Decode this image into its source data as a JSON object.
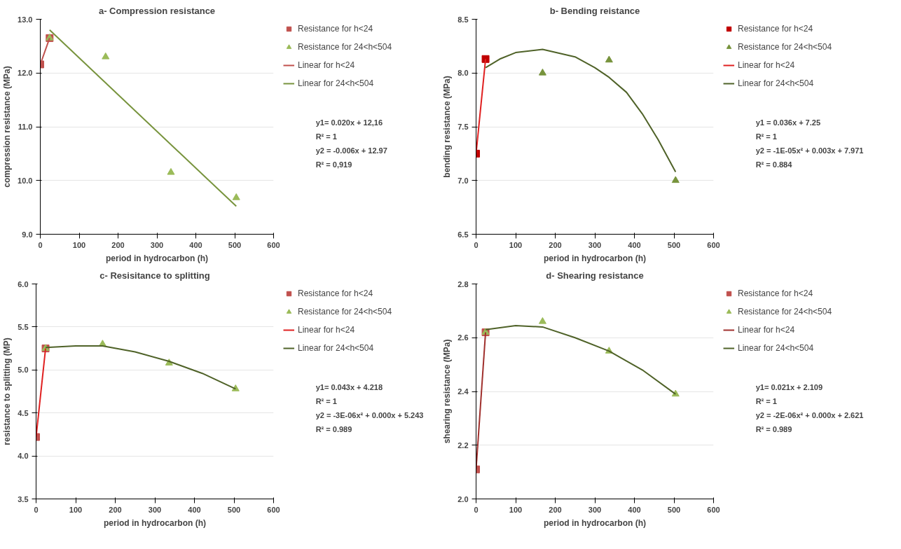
{
  "chart_data": [
    {
      "type": "scatter",
      "title": "a- Compression resistance",
      "xlabel": "period in hydrocarbon (h)",
      "ylabel": "compression resistance (MPa)",
      "xlim": [
        0,
        600
      ],
      "xticks": [
        0,
        100,
        200,
        300,
        400,
        500,
        600
      ],
      "ylim": [
        9,
        13
      ],
      "yticks": [
        {
          "value": 9,
          "label": "9.0"
        },
        {
          "value": 10,
          "label": "10.0"
        },
        {
          "value": 11,
          "label": "11.0"
        },
        {
          "value": 12,
          "label": "12.0"
        },
        {
          "value": 13,
          "label": "13.0"
        }
      ],
      "grid": "y",
      "legend": "right",
      "annotations": [
        "y1= 0.020x + 12,16",
        "R² = 1",
        "y2 = -0.006x + 12.97",
        "R² = 0,919"
      ],
      "series": [
        {
          "name": "Resistance for h<24",
          "marker": "square",
          "color": "#c0504d",
          "x": [
            0,
            24
          ],
          "values": [
            12.16,
            12.65
          ]
        },
        {
          "name": "Resistance for 24<h<504",
          "marker": "triangle",
          "color": "#9bbb59",
          "x": [
            24,
            168,
            336,
            504
          ],
          "values": [
            12.65,
            12.3,
            10.15,
            9.68
          ]
        },
        {
          "name": "Linear for h<24",
          "type": "line",
          "marker": "none",
          "color": "#c0504d",
          "x": [
            0,
            24
          ],
          "values": [
            12.16,
            12.65
          ]
        },
        {
          "name": "Linear for 24<h<504",
          "type": "line",
          "marker": "none",
          "color": "#77933c",
          "x": [
            24,
            504
          ],
          "values": [
            12.8,
            9.52
          ]
        }
      ]
    },
    {
      "type": "scatter",
      "title": "b- Bending reistance",
      "xlabel": "period in hydrocarbon (h)",
      "ylabel": "bending resistance (MPa)",
      "xlim": [
        0,
        600
      ],
      "xticks": [
        0,
        100,
        200,
        300,
        400,
        500,
        600
      ],
      "ylim": [
        6.5,
        8.5
      ],
      "yticks": [
        6.5,
        {
          "value": 7,
          "label": "7.0"
        },
        7.5,
        {
          "value": 8,
          "label": "8.0"
        },
        8.5
      ],
      "grid": "y",
      "legend": "right",
      "annotations": [
        "y1 = 0.036x + 7.25",
        "R² = 1",
        "y2 = -1E-05x² + 0.003x + 7.971",
        "R² = 0.884"
      ],
      "series": [
        {
          "name": "Resistance for h<24",
          "marker": "square",
          "color": "#c00000",
          "x": [
            0,
            24
          ],
          "values": [
            7.25,
            8.13
          ]
        },
        {
          "name": "Resistance for 24<h<504",
          "marker": "triangle",
          "color": "#77933c",
          "x": [
            168,
            336,
            504
          ],
          "values": [
            8.0,
            8.12,
            7.0
          ]
        },
        {
          "name": "Linear for h<24",
          "type": "line",
          "marker": "none",
          "color": "#e02020",
          "x": [
            0,
            24
          ],
          "values": [
            7.25,
            8.13
          ]
        },
        {
          "name": "Linear for 24<h<504",
          "type": "line",
          "marker": "none",
          "color": "#4f6228",
          "x": [
            24,
            60,
            100,
            168,
            250,
            300,
            336,
            380,
            420,
            460,
            504
          ],
          "values": [
            8.05,
            8.13,
            8.19,
            8.22,
            8.15,
            8.05,
            7.96,
            7.82,
            7.62,
            7.38,
            7.08
          ]
        }
      ]
    },
    {
      "type": "scatter",
      "title": "c- Resisitance to splitting",
      "xlabel": "period in hydrocarbon (h)",
      "ylabel": "resistance to splitting (MP)",
      "xlim": [
        0,
        600
      ],
      "xticks": [
        0,
        100,
        200,
        300,
        400,
        500,
        600
      ],
      "ylim": [
        3.5,
        6
      ],
      "yticks": [
        3.5,
        {
          "value": 4,
          "label": "4.0"
        },
        4.5,
        {
          "value": 5,
          "label": "5.0"
        },
        5.5,
        {
          "value": 6,
          "label": "6.0"
        }
      ],
      "grid": "y",
      "legend": "right",
      "annotations": [
        "y1= 0.043x + 4.218",
        "R² = 1",
        "y2 = -3E-06x² + 0.000x + 5.243",
        "R² = 0.989"
      ],
      "series": [
        {
          "name": "Resistance for h<24",
          "marker": "square",
          "color": "#c0504d",
          "x": [
            0,
            24
          ],
          "values": [
            4.22,
            5.25
          ]
        },
        {
          "name": "Resistance for 24<h<504",
          "marker": "triangle",
          "color": "#9bbb59",
          "x": [
            24,
            168,
            336,
            504
          ],
          "values": [
            5.25,
            5.3,
            5.08,
            4.78
          ]
        },
        {
          "name": "Linear for h<24",
          "type": "line",
          "marker": "none",
          "color": "#e02020",
          "x": [
            0,
            24
          ],
          "values": [
            4.22,
            5.25
          ]
        },
        {
          "name": "Linear for 24<h<504",
          "type": "line",
          "marker": "none",
          "color": "#4f6228",
          "x": [
            24,
            100,
            168,
            250,
            336,
            420,
            504
          ],
          "values": [
            5.26,
            5.28,
            5.28,
            5.21,
            5.1,
            4.96,
            4.78
          ]
        }
      ]
    },
    {
      "type": "scatter",
      "title": "d- Shearing resistance",
      "xlabel": "period in hydrocarbon (h)",
      "ylabel": "shearing resistance (MPa)",
      "xlim": [
        0,
        600
      ],
      "xticks": [
        0,
        100,
        200,
        300,
        400,
        500,
        600
      ],
      "ylim": [
        2,
        2.8
      ],
      "yticks": [
        {
          "value": 2,
          "label": "2.0"
        },
        2.2,
        2.4,
        2.6,
        2.8
      ],
      "grid": "y",
      "legend": "right",
      "annotations": [
        "y1= 0.021x + 2.109",
        "R² = 1",
        "y2 = -2E-06x² + 0.000x + 2.621",
        "R² = 0.989"
      ],
      "series": [
        {
          "name": "Resistance for h<24",
          "marker": "square",
          "color": "#c0504d",
          "x": [
            0,
            24
          ],
          "values": [
            2.11,
            2.62
          ]
        },
        {
          "name": "Resistance for 24<h<504",
          "marker": "triangle",
          "color": "#9bbb59",
          "x": [
            24,
            168,
            336,
            504
          ],
          "values": [
            2.62,
            2.66,
            2.55,
            2.39
          ]
        },
        {
          "name": "Linear for h<24",
          "type": "line",
          "marker": "none",
          "color": "#a0302d",
          "x": [
            0,
            24
          ],
          "values": [
            2.11,
            2.62
          ]
        },
        {
          "name": "Linear for 24<h<504",
          "type": "line",
          "marker": "none",
          "color": "#4f6228",
          "x": [
            24,
            100,
            168,
            250,
            336,
            420,
            504
          ],
          "values": [
            2.63,
            2.645,
            2.64,
            2.6,
            2.55,
            2.48,
            2.39
          ]
        }
      ]
    }
  ]
}
